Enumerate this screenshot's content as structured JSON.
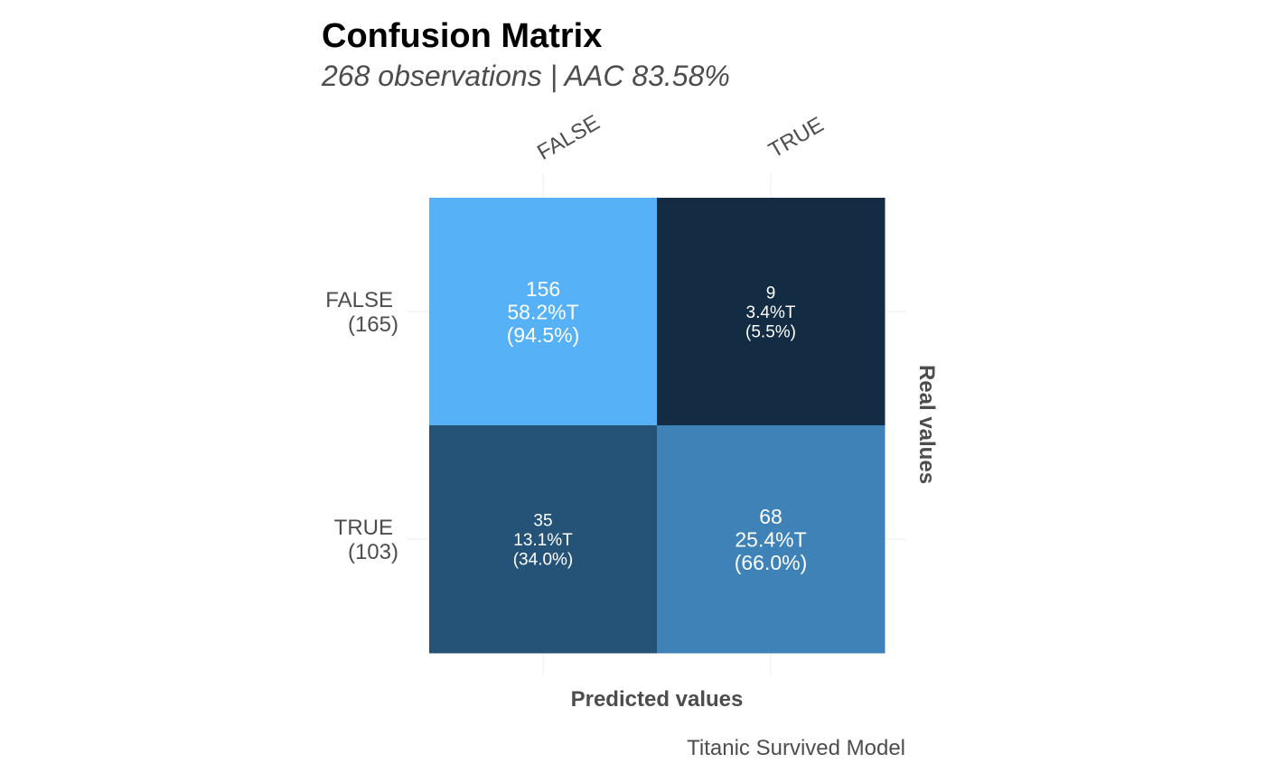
{
  "chart_data": {
    "type": "heatmap",
    "title": "Confusion Matrix",
    "subtitle": "268 observations | AAC 83.58%",
    "xlabel": "Predicted values",
    "ylabel": "Real values",
    "caption": "Titanic Survived Model",
    "x_categories": [
      "FALSE",
      "TRUE"
    ],
    "y_categories": [
      {
        "label": "FALSE",
        "total": "(165)"
      },
      {
        "label": "TRUE",
        "total": "(103)"
      }
    ],
    "cells": [
      {
        "predicted": "FALSE",
        "real": "FALSE",
        "count": 156,
        "pct_total": "58.2%T",
        "pct_row": "(94.5%)",
        "color": "#56B1F7"
      },
      {
        "predicted": "TRUE",
        "real": "FALSE",
        "count": 9,
        "pct_total": "3.4%T",
        "pct_row": "(5.5%)",
        "color": "#132B43"
      },
      {
        "predicted": "FALSE",
        "real": "TRUE",
        "count": 35,
        "pct_total": "13.1%T",
        "pct_row": "(34.0%)",
        "color": "#255377"
      },
      {
        "predicted": "TRUE",
        "real": "TRUE",
        "count": 68,
        "pct_total": "25.4%T",
        "pct_row": "(66.0%)",
        "color": "#3E82B8"
      }
    ],
    "grid": true,
    "legend": "none"
  }
}
